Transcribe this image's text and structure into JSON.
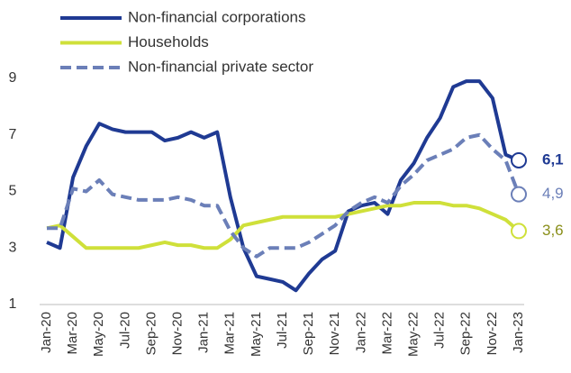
{
  "chart_data": {
    "type": "line",
    "categories": [
      "Jan-20",
      null,
      "Mar-20",
      null,
      "May-20",
      null,
      "Jul-20",
      null,
      "Sep-20",
      null,
      "Nov-20",
      null,
      "Jan-21",
      null,
      "Mar-21",
      null,
      "May-21",
      null,
      "Jul-21",
      null,
      "Sep-21",
      null,
      "Nov-21",
      null,
      "Jan-22",
      null,
      "Mar-22",
      null,
      "May-22",
      null,
      "Jul-22",
      null,
      "Sep-22",
      null,
      "Nov-22",
      null,
      "Jan-23"
    ],
    "series": [
      {
        "name": "Non-financial corporations",
        "color": "#1f3a93",
        "dash": false,
        "label_color": "#1f3a93",
        "label_bold": true,
        "values": [
          3.2,
          3.0,
          5.5,
          6.6,
          7.4,
          7.2,
          7.1,
          7.1,
          7.1,
          6.8,
          6.9,
          7.1,
          6.9,
          7.1,
          4.8,
          3.0,
          2.0,
          1.9,
          1.8,
          1.5,
          2.1,
          2.6,
          2.9,
          4.3,
          4.5,
          4.6,
          4.2,
          5.4,
          6.0,
          6.9,
          7.6,
          8.7,
          8.9,
          8.9,
          8.3,
          6.3,
          6.1
        ],
        "value_labels": [
          null,
          null,
          null,
          null,
          null,
          null,
          null,
          null,
          null,
          null,
          null,
          null,
          null,
          null,
          null,
          null,
          null,
          null,
          null,
          null,
          null,
          null,
          null,
          null,
          null,
          null,
          null,
          null,
          null,
          null,
          null,
          null,
          null,
          null,
          null,
          null,
          "6,1"
        ]
      },
      {
        "name": "Households",
        "color": "#cfe03a",
        "dash": false,
        "label_color": "#8a8f1a",
        "label_bold": false,
        "values": [
          3.7,
          3.8,
          3.4,
          3.0,
          3.0,
          3.0,
          3.0,
          3.0,
          3.1,
          3.2,
          3.1,
          3.1,
          3.0,
          3.0,
          3.3,
          3.8,
          3.9,
          4.0,
          4.1,
          4.1,
          4.1,
          4.1,
          4.1,
          4.2,
          4.3,
          4.4,
          4.5,
          4.5,
          4.6,
          4.6,
          4.6,
          4.5,
          4.5,
          4.4,
          4.2,
          4.0,
          3.6
        ],
        "value_labels": [
          null,
          null,
          null,
          null,
          null,
          null,
          null,
          null,
          null,
          null,
          null,
          null,
          null,
          null,
          null,
          null,
          null,
          null,
          null,
          null,
          null,
          null,
          null,
          null,
          null,
          null,
          null,
          null,
          null,
          null,
          null,
          null,
          null,
          null,
          null,
          null,
          "3,6"
        ]
      },
      {
        "name": "Non-financial private sector",
        "color": "#6b7fb8",
        "dash": true,
        "label_color": "#6b7fb8",
        "label_bold": false,
        "values": [
          3.7,
          3.7,
          5.1,
          5.0,
          5.4,
          4.9,
          4.8,
          4.7,
          4.7,
          4.7,
          4.8,
          4.7,
          4.5,
          4.5,
          3.6,
          3.0,
          2.7,
          3.0,
          3.0,
          3.0,
          3.2,
          3.5,
          3.8,
          4.3,
          4.6,
          4.8,
          4.6,
          5.2,
          5.6,
          6.1,
          6.3,
          6.5,
          6.9,
          7.0,
          6.5,
          6.1,
          4.9
        ],
        "value_labels": [
          null,
          null,
          null,
          null,
          null,
          null,
          null,
          null,
          null,
          null,
          null,
          null,
          null,
          null,
          null,
          null,
          null,
          null,
          null,
          null,
          null,
          null,
          null,
          null,
          null,
          null,
          null,
          null,
          null,
          null,
          null,
          null,
          null,
          null,
          null,
          null,
          "4,9"
        ]
      }
    ],
    "ylim": [
      1,
      9
    ],
    "yticks": [
      1,
      3,
      5,
      7,
      9
    ],
    "grid": false,
    "legend": "top-left"
  }
}
